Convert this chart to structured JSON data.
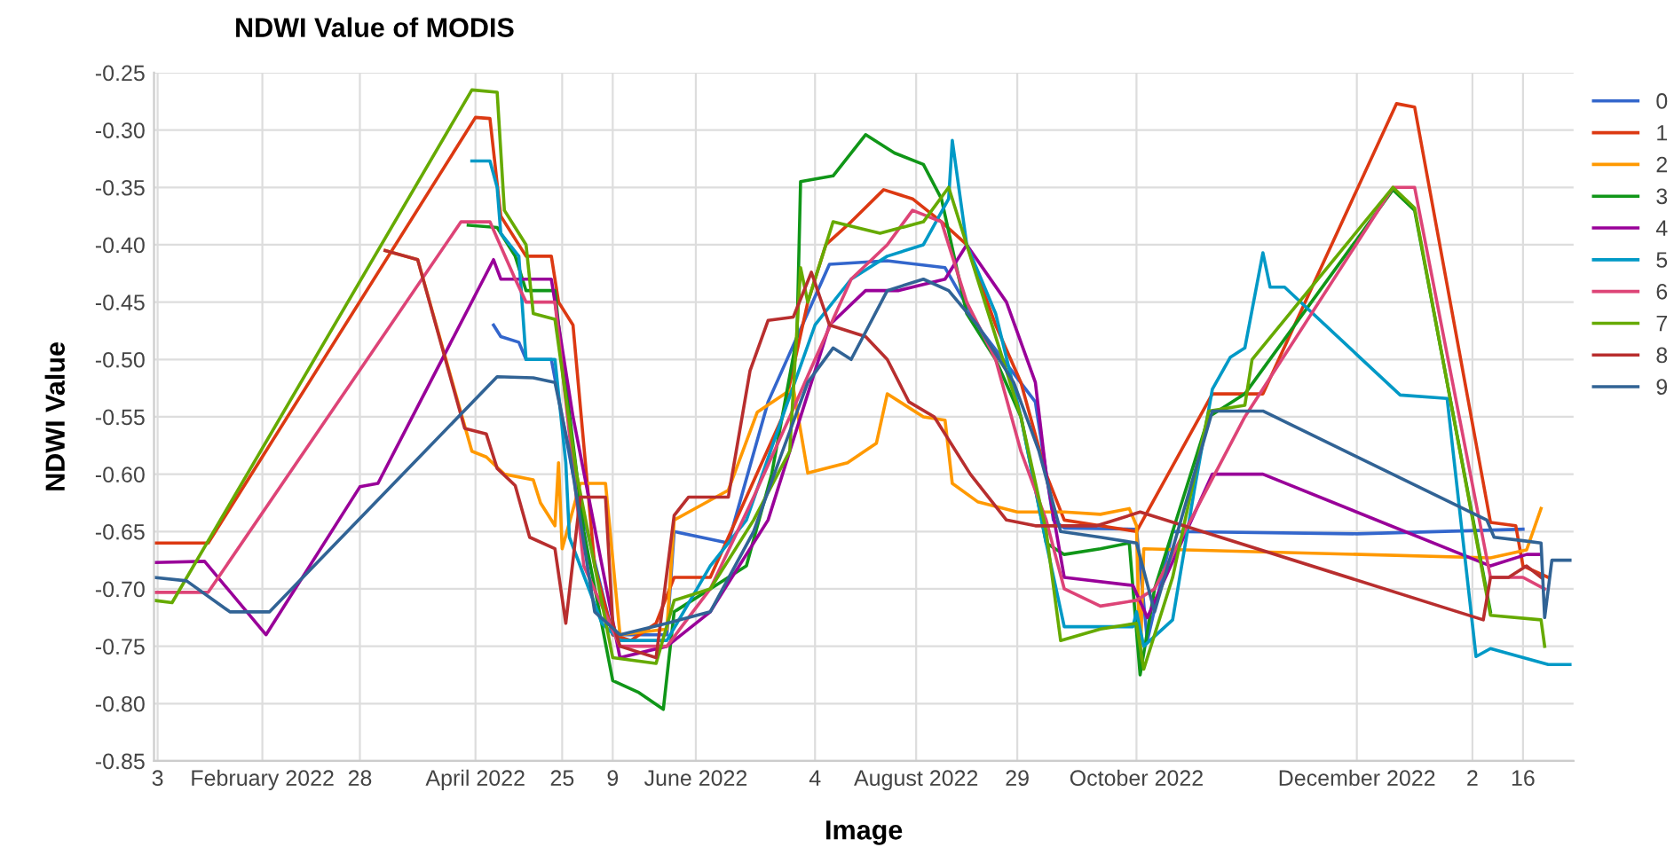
{
  "chart_data": {
    "type": "line",
    "title": "NDWI Value of MODIS",
    "xlabel": "Image",
    "ylabel": "NDWI Value",
    "legend": "right",
    "grid": true,
    "marker": "none",
    "line_style": "solid",
    "xlim": [
      "2022-01-02",
      "2023-01-30"
    ],
    "xticks": [
      {
        "value": "2022-01-03",
        "label": "3"
      },
      {
        "value": "2022-02-01",
        "label": "February 2022"
      },
      {
        "value": "2022-02-28",
        "label": "28"
      },
      {
        "value": "2022-04-01",
        "label": "April 2022"
      },
      {
        "value": "2022-04-25",
        "label": "25"
      },
      {
        "value": "2022-05-09",
        "label": "9"
      },
      {
        "value": "2022-06-01",
        "label": "June 2022"
      },
      {
        "value": "2022-07-04",
        "label": "4"
      },
      {
        "value": "2022-08-01",
        "label": "August 2022"
      },
      {
        "value": "2022-08-29",
        "label": "29"
      },
      {
        "value": "2022-10-01",
        "label": "October 2022"
      },
      {
        "value": "2022-12-01",
        "label": "December 2022"
      },
      {
        "value": "2023-01-02",
        "label": "2"
      },
      {
        "value": "2023-01-16",
        "label": "16"
      }
    ],
    "ylim": [
      -0.85,
      -0.25
    ],
    "yticks": [
      {
        "value": -0.25,
        "label": "-0.25"
      },
      {
        "value": -0.3,
        "label": "-0.30"
      },
      {
        "value": -0.35,
        "label": "-0.35"
      },
      {
        "value": -0.4,
        "label": "-0.40"
      },
      {
        "value": -0.45,
        "label": "-0.45"
      },
      {
        "value": -0.5,
        "label": "-0.50"
      },
      {
        "value": -0.55,
        "label": "-0.55"
      },
      {
        "value": -0.6,
        "label": "-0.60"
      },
      {
        "value": -0.65,
        "label": "-0.65"
      },
      {
        "value": -0.7,
        "label": "-0.70"
      },
      {
        "value": -0.75,
        "label": "-0.75"
      },
      {
        "value": -0.8,
        "label": "-0.80"
      },
      {
        "value": -0.85,
        "label": "-0.85"
      }
    ],
    "series": [
      {
        "name": "0",
        "color": "#3366cc",
        "x": [
          "2022-04-06",
          "2022-04-08",
          "2022-04-13",
          "2022-04-15",
          "2022-04-22",
          "2022-04-28",
          "2022-05-09",
          "2022-05-24",
          "2022-05-26",
          "2022-06-10",
          "2022-06-21",
          "2022-07-08",
          "2022-07-24",
          "2022-08-09",
          "2022-08-19",
          "2022-09-03",
          "2022-09-08",
          "2022-09-11",
          "2022-10-01",
          "2022-10-04",
          "2022-10-11",
          "2022-12-01",
          "2023-01-16"
        ],
        "values": [
          -0.47,
          -0.48,
          -0.485,
          -0.5,
          -0.5,
          -0.6,
          -0.74,
          -0.74,
          -0.65,
          -0.66,
          -0.537,
          -0.417,
          -0.414,
          -0.42,
          -0.475,
          -0.537,
          -0.64,
          -0.647,
          -0.648,
          -0.745,
          -0.65,
          -0.652,
          -0.648
        ]
      },
      {
        "name": "1",
        "color": "#dc3912",
        "x": [
          "2022-01-02",
          "2022-01-17",
          "2022-04-01",
          "2022-04-05",
          "2022-04-08",
          "2022-04-15",
          "2022-04-22",
          "2022-04-24",
          "2022-04-28",
          "2022-05-04",
          "2022-05-09",
          "2022-05-14",
          "2022-05-21",
          "2022-05-26",
          "2022-06-05",
          "2022-06-15",
          "2022-06-25",
          "2022-07-02",
          "2022-07-07",
          "2022-07-14",
          "2022-07-23",
          "2022-07-31",
          "2022-08-08",
          "2022-08-15",
          "2022-08-23",
          "2022-08-30",
          "2022-09-06",
          "2022-09-11",
          "2022-09-21",
          "2022-10-01",
          "2022-10-22",
          "2022-11-05",
          "2022-12-12",
          "2022-12-17",
          "2023-01-07",
          "2023-01-14",
          "2023-01-16",
          "2023-01-23"
        ],
        "values": [
          -0.66,
          -0.66,
          -0.289,
          -0.29,
          -0.375,
          -0.41,
          -0.41,
          -0.45,
          -0.47,
          -0.68,
          -0.74,
          -0.745,
          -0.73,
          -0.69,
          -0.69,
          -0.62,
          -0.55,
          -0.45,
          -0.4,
          -0.38,
          -0.352,
          -0.36,
          -0.38,
          -0.4,
          -0.47,
          -0.52,
          -0.6,
          -0.64,
          -0.645,
          -0.65,
          -0.53,
          -0.53,
          -0.277,
          -0.28,
          -0.642,
          -0.645,
          -0.68,
          -0.69
        ]
      },
      {
        "name": "2",
        "color": "#ff9900",
        "x": [
          "2022-03-07",
          "2022-03-16",
          "2022-03-31",
          "2022-04-04",
          "2022-04-09",
          "2022-04-17",
          "2022-04-19",
          "2022-04-23",
          "2022-04-24",
          "2022-04-25",
          "2022-04-30",
          "2022-05-07",
          "2022-05-11",
          "2022-05-24",
          "2022-05-26",
          "2022-06-10",
          "2022-06-18",
          "2022-06-28",
          "2022-07-02",
          "2022-07-13",
          "2022-07-21",
          "2022-07-24",
          "2022-08-03",
          "2022-08-09",
          "2022-08-11",
          "2022-08-18",
          "2022-08-29",
          "2022-09-11",
          "2022-09-21",
          "2022-09-29",
          "2022-10-01",
          "2022-10-02",
          "2022-10-03",
          "2023-01-07",
          "2023-01-17",
          "2023-01-21"
        ],
        "values": [
          -0.405,
          -0.413,
          -0.58,
          -0.585,
          -0.6,
          -0.605,
          -0.625,
          -0.645,
          -0.59,
          -0.665,
          -0.608,
          -0.608,
          -0.74,
          -0.735,
          -0.64,
          -0.614,
          -0.546,
          -0.525,
          -0.599,
          -0.59,
          -0.573,
          -0.53,
          -0.55,
          -0.553,
          -0.608,
          -0.624,
          -0.633,
          -0.633,
          -0.635,
          -0.63,
          -0.645,
          -0.769,
          -0.665,
          -0.673,
          -0.666,
          -0.63
        ]
      },
      {
        "name": "3",
        "color": "#109618",
        "x": [
          "2022-03-30",
          "2022-04-07",
          "2022-04-12",
          "2022-04-15",
          "2022-04-23",
          "2022-04-24",
          "2022-05-01",
          "2022-05-09",
          "2022-05-16",
          "2022-05-23",
          "2022-05-26",
          "2022-06-05",
          "2022-06-15",
          "2022-06-22",
          "2022-06-29",
          "2022-06-30",
          "2022-07-09",
          "2022-07-18",
          "2022-07-26",
          "2022-08-03",
          "2022-08-08",
          "2022-08-15",
          "2022-08-23",
          "2022-08-30",
          "2022-09-06",
          "2022-09-11",
          "2022-09-21",
          "2022-09-29",
          "2022-10-02",
          "2022-10-06",
          "2022-10-21",
          "2022-10-31",
          "2022-12-11",
          "2022-12-17",
          "2023-01-07"
        ],
        "values": [
          -0.383,
          -0.385,
          -0.41,
          -0.44,
          -0.44,
          -0.47,
          -0.65,
          -0.78,
          -0.79,
          -0.805,
          -0.72,
          -0.7,
          -0.68,
          -0.6,
          -0.48,
          -0.345,
          -0.34,
          -0.304,
          -0.32,
          -0.33,
          -0.36,
          -0.46,
          -0.5,
          -0.55,
          -0.66,
          -0.67,
          -0.665,
          -0.66,
          -0.775,
          -0.7,
          -0.55,
          -0.53,
          -0.352,
          -0.37,
          -0.72
        ]
      },
      {
        "name": "4",
        "color": "#990099",
        "x": [
          "2022-01-02",
          "2022-01-16",
          "2022-02-02",
          "2022-02-28",
          "2022-03-05",
          "2022-04-06",
          "2022-04-08",
          "2022-04-22",
          "2022-04-28",
          "2022-05-11",
          "2022-05-24",
          "2022-06-05",
          "2022-06-21",
          "2022-07-08",
          "2022-07-18",
          "2022-07-27",
          "2022-08-09",
          "2022-08-15",
          "2022-08-26",
          "2022-09-03",
          "2022-09-06",
          "2022-09-11",
          "2022-09-30",
          "2022-10-04",
          "2022-10-22",
          "2022-11-05",
          "2023-01-07",
          "2023-01-17",
          "2023-01-21"
        ],
        "values": [
          -0.677,
          -0.676,
          -0.74,
          -0.611,
          -0.608,
          -0.413,
          -0.43,
          -0.43,
          -0.55,
          -0.76,
          -0.75,
          -0.72,
          -0.64,
          -0.47,
          -0.44,
          -0.44,
          -0.43,
          -0.4,
          -0.45,
          -0.52,
          -0.6,
          -0.69,
          -0.697,
          -0.725,
          -0.6,
          -0.6,
          -0.68,
          -0.67,
          -0.67
        ]
      },
      {
        "name": "5",
        "color": "#0099c6",
        "x": [
          "2022-03-31",
          "2022-04-05",
          "2022-04-07",
          "2022-04-08",
          "2022-04-13",
          "2022-04-15",
          "2022-04-23",
          "2022-04-26",
          "2022-04-27",
          "2022-05-06",
          "2022-05-11",
          "2022-05-24",
          "2022-06-05",
          "2022-06-15",
          "2022-06-25",
          "2022-07-04",
          "2022-07-14",
          "2022-07-24",
          "2022-08-03",
          "2022-08-10",
          "2022-08-11",
          "2022-08-15",
          "2022-08-23",
          "2022-08-30",
          "2022-09-06",
          "2022-09-11",
          "2022-09-30",
          "2022-10-01",
          "2022-10-03",
          "2022-10-11",
          "2022-10-17",
          "2022-10-22",
          "2022-10-27",
          "2022-10-31",
          "2022-11-05",
          "2022-11-07",
          "2022-11-11",
          "2022-12-13",
          "2022-12-26",
          "2023-01-03",
          "2023-01-07",
          "2023-01-15",
          "2023-01-23",
          "2023-01-29"
        ],
        "values": [
          -0.327,
          -0.327,
          -0.35,
          -0.39,
          -0.41,
          -0.5,
          -0.5,
          -0.59,
          -0.655,
          -0.73,
          -0.745,
          -0.745,
          -0.68,
          -0.64,
          -0.55,
          -0.47,
          -0.43,
          -0.41,
          -0.4,
          -0.36,
          -0.309,
          -0.4,
          -0.46,
          -0.55,
          -0.66,
          -0.733,
          -0.733,
          -0.72,
          -0.75,
          -0.727,
          -0.614,
          -0.526,
          -0.498,
          -0.49,
          -0.407,
          -0.437,
          -0.437,
          -0.531,
          -0.534,
          -0.759,
          -0.752,
          -0.759,
          -0.766,
          -0.766
        ]
      },
      {
        "name": "6",
        "color": "#dd4477",
        "x": [
          "2022-01-02",
          "2022-01-17",
          "2022-03-28",
          "2022-04-05",
          "2022-04-12",
          "2022-04-15",
          "2022-04-23",
          "2022-05-01",
          "2022-05-11",
          "2022-05-24",
          "2022-06-05",
          "2022-06-17",
          "2022-06-27",
          "2022-07-04",
          "2022-07-14",
          "2022-07-24",
          "2022-07-31",
          "2022-08-08",
          "2022-08-15",
          "2022-08-23",
          "2022-08-30",
          "2022-09-06",
          "2022-09-11",
          "2022-09-21",
          "2022-10-01",
          "2022-10-06",
          "2022-10-31",
          "2022-12-11",
          "2022-12-17",
          "2023-01-07",
          "2023-01-16",
          "2023-01-22"
        ],
        "values": [
          -0.703,
          -0.703,
          -0.38,
          -0.38,
          -0.43,
          -0.45,
          -0.45,
          -0.68,
          -0.75,
          -0.75,
          -0.7,
          -0.62,
          -0.55,
          -0.5,
          -0.43,
          -0.4,
          -0.37,
          -0.38,
          -0.45,
          -0.5,
          -0.58,
          -0.64,
          -0.7,
          -0.715,
          -0.71,
          -0.7,
          -0.55,
          -0.35,
          -0.35,
          -0.69,
          -0.69,
          -0.7
        ]
      },
      {
        "name": "7",
        "color": "#66aa00",
        "x": [
          "2022-01-02",
          "2022-01-07",
          "2022-03-31",
          "2022-04-07",
          "2022-04-09",
          "2022-04-15",
          "2022-04-17",
          "2022-04-23",
          "2022-04-29",
          "2022-05-09",
          "2022-05-21",
          "2022-05-26",
          "2022-06-05",
          "2022-06-17",
          "2022-06-27",
          "2022-06-30",
          "2022-07-02",
          "2022-07-09",
          "2022-07-22",
          "2022-08-03",
          "2022-08-10",
          "2022-08-15",
          "2022-08-23",
          "2022-08-30",
          "2022-09-06",
          "2022-09-10",
          "2022-09-21",
          "2022-10-01",
          "2022-10-03",
          "2022-10-11",
          "2022-10-21",
          "2022-10-31",
          "2022-11-02",
          "2022-12-11",
          "2022-12-17",
          "2023-01-07",
          "2023-01-21",
          "2023-01-22"
        ],
        "values": [
          -0.71,
          -0.712,
          -0.265,
          -0.267,
          -0.37,
          -0.4,
          -0.46,
          -0.465,
          -0.6,
          -0.76,
          -0.765,
          -0.71,
          -0.7,
          -0.64,
          -0.58,
          -0.42,
          -0.45,
          -0.38,
          -0.39,
          -0.38,
          -0.35,
          -0.4,
          -0.48,
          -0.55,
          -0.65,
          -0.745,
          -0.735,
          -0.73,
          -0.77,
          -0.69,
          -0.545,
          -0.54,
          -0.5,
          -0.35,
          -0.368,
          -0.723,
          -0.727,
          -0.75
        ]
      },
      {
        "name": "8",
        "color": "#b82e2e",
        "x": [
          "2022-03-07",
          "2022-03-16",
          "2022-03-29",
          "2022-04-04",
          "2022-04-07",
          "2022-04-12",
          "2022-04-16",
          "2022-04-23",
          "2022-04-26",
          "2022-04-30",
          "2022-05-07",
          "2022-05-09",
          "2022-05-11",
          "2022-05-21",
          "2022-05-26",
          "2022-05-30",
          "2022-06-10",
          "2022-06-16",
          "2022-06-21",
          "2022-06-28",
          "2022-07-03",
          "2022-07-08",
          "2022-07-18",
          "2022-07-24",
          "2022-07-30",
          "2022-08-06",
          "2022-08-16",
          "2022-08-26",
          "2022-09-03",
          "2022-09-20",
          "2022-10-02",
          "2023-01-05",
          "2023-01-07",
          "2023-01-12",
          "2023-01-17",
          "2023-01-21"
        ],
        "values": [
          -0.405,
          -0.413,
          -0.56,
          -0.565,
          -0.595,
          -0.61,
          -0.655,
          -0.665,
          -0.73,
          -0.62,
          -0.62,
          -0.73,
          -0.75,
          -0.76,
          -0.636,
          -0.62,
          -0.62,
          -0.51,
          -0.466,
          -0.463,
          -0.424,
          -0.47,
          -0.48,
          -0.5,
          -0.537,
          -0.55,
          -0.6,
          -0.64,
          -0.645,
          -0.645,
          -0.633,
          -0.727,
          -0.69,
          -0.69,
          -0.68,
          -0.69
        ]
      },
      {
        "name": "9",
        "color": "#316395",
        "x": [
          "2022-01-02",
          "2022-01-11",
          "2022-01-23",
          "2022-02-03",
          "2022-04-07",
          "2022-04-17",
          "2022-04-23",
          "2022-04-27",
          "2022-05-04",
          "2022-05-11",
          "2022-05-24",
          "2022-06-05",
          "2022-06-17",
          "2022-06-25",
          "2022-07-02",
          "2022-07-09",
          "2022-07-14",
          "2022-07-19",
          "2022-07-24",
          "2022-08-03",
          "2022-08-10",
          "2022-08-18",
          "2022-08-28",
          "2022-09-04",
          "2022-09-10",
          "2022-09-21",
          "2022-10-01",
          "2022-10-06",
          "2022-10-22",
          "2022-11-05",
          "2023-01-06",
          "2023-01-08",
          "2023-01-16",
          "2023-01-21",
          "2023-01-22",
          "2023-01-24",
          "2023-01-29"
        ],
        "values": [
          -0.69,
          -0.693,
          -0.72,
          -0.72,
          -0.515,
          -0.516,
          -0.52,
          -0.58,
          -0.72,
          -0.74,
          -0.73,
          -0.72,
          -0.65,
          -0.58,
          -0.52,
          -0.49,
          -0.5,
          -0.47,
          -0.44,
          -0.43,
          -0.44,
          -0.47,
          -0.52,
          -0.58,
          -0.65,
          -0.655,
          -0.66,
          -0.72,
          -0.545,
          -0.545,
          -0.64,
          -0.655,
          -0.658,
          -0.66,
          -0.725,
          -0.675,
          -0.675
        ]
      }
    ]
  }
}
